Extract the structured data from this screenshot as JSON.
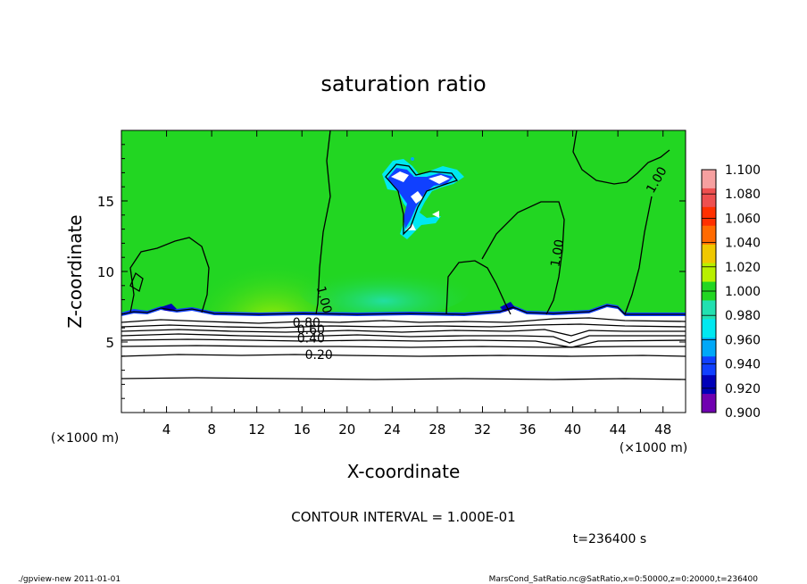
{
  "chart_data": {
    "type": "heatmap",
    "title": "saturation ratio",
    "xlabel": "X-coordinate",
    "ylabel": "Z-coordinate",
    "x_unit": "(×1000 m)",
    "z_unit": "(×1000 m)",
    "xlim": [
      0,
      50
    ],
    "ylim": [
      0,
      20
    ],
    "x_ticks": [
      4,
      8,
      12,
      16,
      20,
      24,
      28,
      32,
      36,
      40,
      44,
      48
    ],
    "y_ticks": [
      5,
      10,
      15
    ],
    "contour_interval_text": "CONTOUR INTERVAL = 1.000E-01",
    "contour_labels": [
      {
        "text": "1.00",
        "x": 18.0,
        "z": 8.0,
        "angle": 75
      },
      {
        "text": "1.00",
        "x": 38.6,
        "z": 11.3,
        "angle": -80
      },
      {
        "text": "1.00",
        "x": 47.4,
        "z": 16.5,
        "angle": -60
      },
      {
        "text": "0.80",
        "x": 16.4,
        "z": 6.4,
        "angle": 0
      },
      {
        "text": "0.60",
        "x": 16.8,
        "z": 5.9,
        "angle": 0
      },
      {
        "text": "0.40",
        "x": 16.8,
        "z": 5.3,
        "angle": 0
      },
      {
        "text": "0.20",
        "x": 17.5,
        "z": 4.1,
        "angle": 0
      }
    ],
    "colorbar": {
      "levels": [
        "1.100",
        "1.080",
        "1.060",
        "1.040",
        "1.020",
        "1.000",
        "0.980",
        "0.960",
        "0.940",
        "0.920",
        "0.900"
      ],
      "colors": [
        "#f6a0a0",
        "#ee5050",
        "#ff3000",
        "#ff6a00",
        "#f0c800",
        "#b8f000",
        "#22d622",
        "#22e0b0",
        "#00e8f0",
        "#00a8f8",
        "#1040ff",
        "#0000b8",
        "#7000b0"
      ]
    },
    "dominant_value_color": "#22d622",
    "time_text": "t=236400 s"
  },
  "footer": {
    "left": "./gpview-new  2011-01-01",
    "right": "MarsCond_SatRatio.nc@SatRatio,x=0:50000,z=0:20000,t=236400"
  }
}
